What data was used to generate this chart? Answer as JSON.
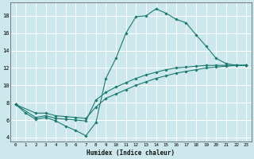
{
  "xlabel": "Humidex (Indice chaleur)",
  "background_color": "#cce8ec",
  "grid_color": "#ffffff",
  "line_color": "#1a7a6e",
  "xlim": [
    -0.5,
    23.5
  ],
  "ylim": [
    3.5,
    19.5
  ],
  "xticks": [
    0,
    1,
    2,
    3,
    4,
    5,
    6,
    7,
    8,
    9,
    10,
    11,
    12,
    13,
    14,
    15,
    16,
    17,
    18,
    19,
    20,
    21,
    22,
    23
  ],
  "yticks": [
    4,
    6,
    8,
    10,
    12,
    14,
    16,
    18
  ],
  "curve1_x": [
    0,
    1,
    2,
    3,
    4,
    5,
    6,
    7,
    8,
    9,
    10,
    11,
    12,
    13,
    14,
    15,
    16,
    17,
    18,
    19,
    20,
    21,
    22,
    23
  ],
  "curve1_y": [
    7.8,
    6.8,
    6.1,
    6.3,
    5.9,
    5.3,
    4.8,
    4.2,
    5.7,
    10.8,
    13.1,
    16.0,
    17.9,
    18.0,
    18.8,
    18.3,
    17.6,
    17.2,
    15.8,
    14.5,
    13.1,
    12.5,
    12.3,
    12.3
  ],
  "curve2_x": [
    0,
    2,
    3,
    4,
    5,
    6,
    7,
    8,
    9,
    10,
    11,
    12,
    13,
    14,
    15,
    16,
    17,
    18,
    19,
    20,
    21,
    22,
    23
  ],
  "curve2_y": [
    7.8,
    6.3,
    6.5,
    6.2,
    6.1,
    6.0,
    5.9,
    8.3,
    9.2,
    9.8,
    10.3,
    10.8,
    11.2,
    11.5,
    11.8,
    12.0,
    12.1,
    12.2,
    12.3,
    12.3,
    12.3,
    12.3,
    12.3
  ],
  "curve3_x": [
    0,
    2,
    3,
    4,
    5,
    6,
    7,
    8,
    9,
    10,
    11,
    12,
    13,
    14,
    15,
    16,
    17,
    18,
    19,
    20,
    21,
    22,
    23
  ],
  "curve3_y": [
    7.8,
    6.8,
    6.8,
    6.5,
    6.4,
    6.3,
    6.2,
    7.5,
    8.5,
    9.0,
    9.5,
    10.0,
    10.4,
    10.8,
    11.1,
    11.4,
    11.6,
    11.8,
    12.0,
    12.1,
    12.2,
    12.3,
    12.3
  ]
}
